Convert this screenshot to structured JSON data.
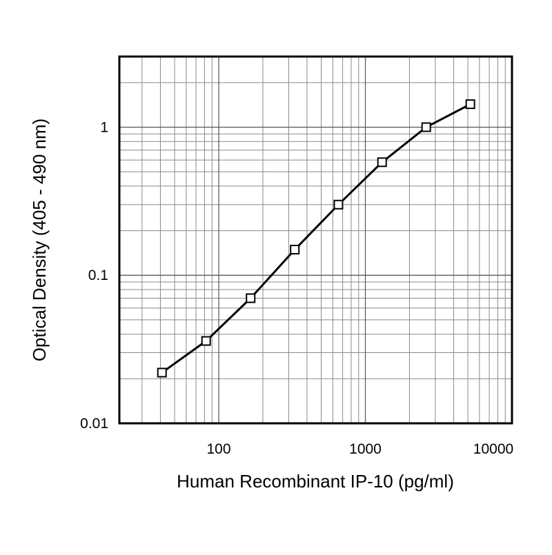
{
  "chart_data": {
    "type": "line",
    "x_label": "Human Recombinant IP-10 (pg/ml)",
    "y_label": "Optical Density (405 - 490 nm)",
    "x": [
      41,
      82,
      165,
      330,
      655,
      1300,
      2600,
      5200
    ],
    "series": [
      {
        "color": "#000000",
        "values": [
          0.022,
          0.036,
          0.07,
          0.149,
          0.3,
          0.58,
          1.0,
          1.43
        ]
      }
    ],
    "xlim": [
      21,
      10000
    ],
    "ylim": [
      0.01,
      3
    ],
    "xticks": [
      100,
      1000,
      10000
    ],
    "yticks": [
      0.01,
      0.1,
      1
    ],
    "xscale": "log",
    "yscale": "log",
    "grid": true
  }
}
